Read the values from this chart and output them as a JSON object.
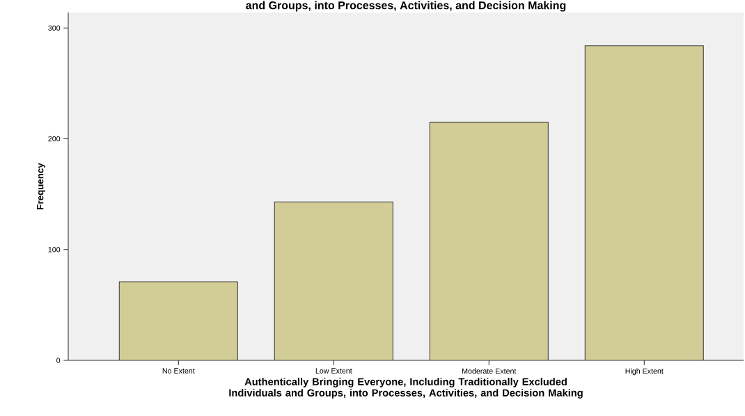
{
  "chart_data": {
    "type": "bar",
    "title": "and Groups, into Processes, Activities, and Decision Making",
    "categories": [
      "No Extent",
      "Low Extent",
      "Moderate Extent",
      "High Extent"
    ],
    "values": [
      71,
      143,
      215,
      284
    ],
    "color": "#d2cd96",
    "xlabel": "Authentically Bringing Everyone, Including Traditionally Excluded Individuals and Groups, into Processes, Activities, and Decision Making",
    "ylabel": "Frequency",
    "ylim": [
      0,
      314
    ],
    "yticks": [
      0,
      100,
      200,
      300
    ],
    "grid": false
  }
}
